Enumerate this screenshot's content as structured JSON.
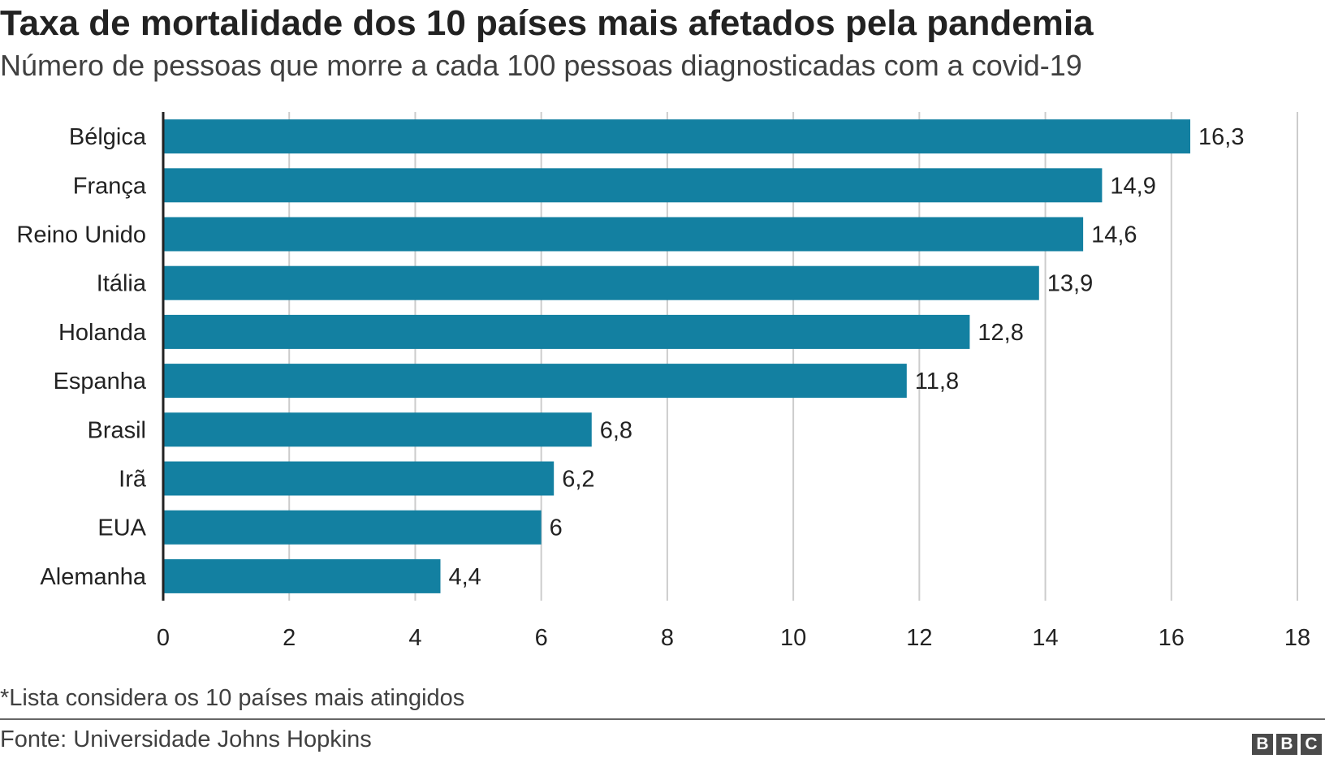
{
  "title": "Taxa de mortalidade dos 10 países mais afetados pela pandemia",
  "subtitle": "Número de pessoas que morre a cada 100 pessoas diagnosticadas com a covid-19",
  "note": "*Lista considera os 10 países mais atingidos",
  "source": "Fonte: Universidade Johns Hopkins",
  "logo": {
    "letters": [
      "B",
      "B",
      "C"
    ],
    "color": "#4a4a4a"
  },
  "colors": {
    "bar": "#1380a1",
    "grid": "#cccccc",
    "axis": "#222222"
  },
  "chart_data": {
    "type": "bar",
    "orientation": "horizontal",
    "categories": [
      "Bélgica",
      "França",
      "Reino Unido",
      "Itália",
      "Holanda",
      "Espanha",
      "Brasil",
      "Irã",
      "EUA",
      "Alemanha"
    ],
    "values": [
      16.3,
      14.9,
      14.6,
      13.9,
      12.8,
      11.8,
      6.8,
      6.2,
      6,
      4.4
    ],
    "value_labels": [
      "16,3",
      "14,9",
      "14,6",
      "13,9",
      "12,8",
      "11,8",
      "6,8",
      "6,2",
      "6",
      "4,4"
    ],
    "xlim": [
      0,
      18
    ],
    "xticks": [
      0,
      2,
      4,
      6,
      8,
      10,
      12,
      14,
      16,
      18
    ],
    "xticklabels": [
      "0",
      "2",
      "4",
      "6",
      "8",
      "10",
      "12",
      "14",
      "16",
      "18"
    ],
    "grid": true
  }
}
